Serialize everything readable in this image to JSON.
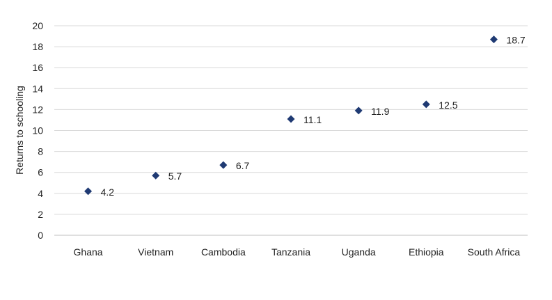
{
  "chart_data": {
    "type": "scatter",
    "title": "",
    "xlabel": "",
    "ylabel": "Returns to schooling",
    "ylim": [
      0,
      20
    ],
    "y_ticks": [
      0,
      2,
      4,
      6,
      8,
      10,
      12,
      14,
      16,
      18,
      20
    ],
    "categories": [
      "Ghana",
      "Vietnam",
      "Cambodia",
      "Tanzania",
      "Uganda",
      "Ethiopia",
      "South Africa"
    ],
    "values": [
      4.2,
      5.7,
      6.7,
      11.1,
      11.9,
      12.5,
      18.7
    ],
    "data_labels": [
      "4.2",
      "5.7",
      "6.7",
      "11.1",
      "11.9",
      "12.5",
      "18.7"
    ],
    "marker": "diamond",
    "marker_color": "#1f3a73",
    "grid": true,
    "legend": "none"
  }
}
